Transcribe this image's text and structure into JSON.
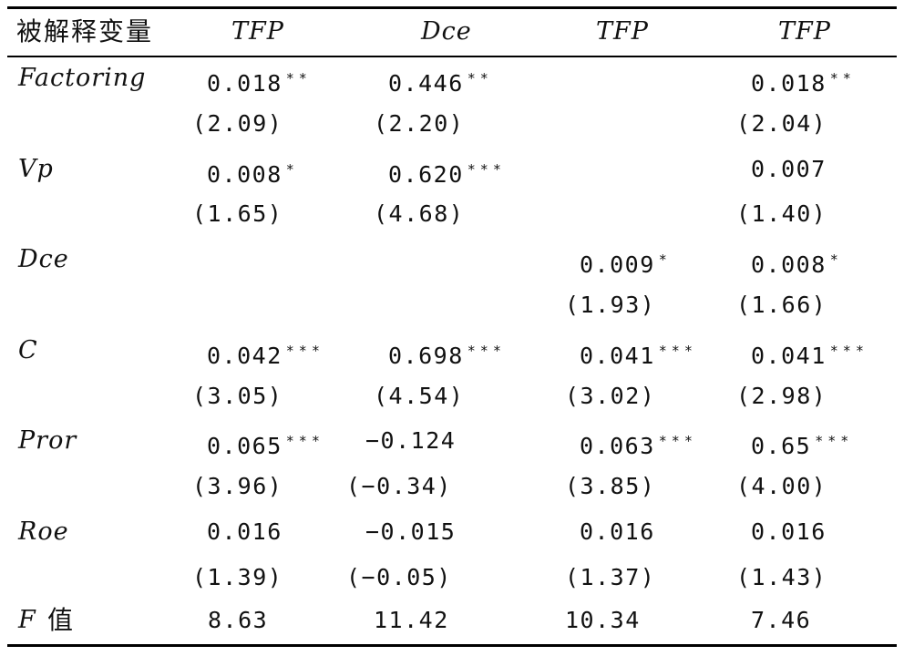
{
  "header": [
    "被解释变量",
    "TFP",
    "Dce",
    "TFP",
    "TFP"
  ],
  "rows": [
    {
      "label": "Factoring",
      "cells": [
        {
          "v": "0.018",
          "s": "**"
        },
        {
          "v": "0.446",
          "s": "**"
        },
        {
          "v": "",
          "s": ""
        },
        {
          "v": "0.018",
          "s": "**"
        }
      ]
    },
    {
      "label": "",
      "cells": [
        {
          "v": "(2.09)",
          "s": ""
        },
        {
          "v": "(2.20)",
          "s": ""
        },
        {
          "v": "",
          "s": ""
        },
        {
          "v": "(2.04)",
          "s": ""
        }
      ]
    },
    {
      "label": "Vp",
      "cells": [
        {
          "v": "0.008",
          "s": "*"
        },
        {
          "v": "0.620",
          "s": "***"
        },
        {
          "v": "",
          "s": ""
        },
        {
          "v": "0.007",
          "s": ""
        }
      ]
    },
    {
      "label": "",
      "cells": [
        {
          "v": "(1.65)",
          "s": ""
        },
        {
          "v": "(4.68)",
          "s": ""
        },
        {
          "v": "",
          "s": ""
        },
        {
          "v": "(1.40)",
          "s": ""
        }
      ]
    },
    {
      "label": "Dce",
      "cells": [
        {
          "v": "",
          "s": ""
        },
        {
          "v": "",
          "s": ""
        },
        {
          "v": "0.009",
          "s": "*"
        },
        {
          "v": "0.008",
          "s": "*"
        }
      ]
    },
    {
      "label": "",
      "cells": [
        {
          "v": "",
          "s": ""
        },
        {
          "v": "",
          "s": ""
        },
        {
          "v": "(1.93)",
          "s": ""
        },
        {
          "v": "(1.66)",
          "s": ""
        }
      ]
    },
    {
      "label": "C",
      "cells": [
        {
          "v": "0.042",
          "s": "***"
        },
        {
          "v": "0.698",
          "s": "***"
        },
        {
          "v": "0.041",
          "s": "***"
        },
        {
          "v": "0.041",
          "s": "***"
        }
      ]
    },
    {
      "label": "",
      "cells": [
        {
          "v": "(3.05)",
          "s": ""
        },
        {
          "v": "(4.54)",
          "s": ""
        },
        {
          "v": "(3.02)",
          "s": ""
        },
        {
          "v": "(2.98)",
          "s": ""
        }
      ]
    },
    {
      "label": "Pror",
      "cells": [
        {
          "v": "0.065",
          "s": "***"
        },
        {
          "v": "−0.124",
          "s": ""
        },
        {
          "v": "0.063",
          "s": "***"
        },
        {
          "v": "0.65",
          "s": "***"
        }
      ]
    },
    {
      "label": "",
      "cells": [
        {
          "v": "(3.96)",
          "s": ""
        },
        {
          "v": "(−0.34)",
          "s": ""
        },
        {
          "v": "(3.85)",
          "s": ""
        },
        {
          "v": "(4.00)",
          "s": ""
        }
      ]
    },
    {
      "label": "Roe",
      "cells": [
        {
          "v": "0.016",
          "s": ""
        },
        {
          "v": "−0.015",
          "s": ""
        },
        {
          "v": "0.016",
          "s": ""
        },
        {
          "v": "0.016",
          "s": ""
        }
      ]
    },
    {
      "label": "",
      "cells": [
        {
          "v": "(1.39)",
          "s": ""
        },
        {
          "v": "(−0.05)",
          "s": ""
        },
        {
          "v": "(1.37)",
          "s": ""
        },
        {
          "v": "(1.43)",
          "s": ""
        }
      ]
    }
  ],
  "footer": {
    "label_var": "F",
    "label_zh": "值",
    "values": [
      "8.63",
      "11.42",
      "10.34",
      "7.46"
    ]
  }
}
